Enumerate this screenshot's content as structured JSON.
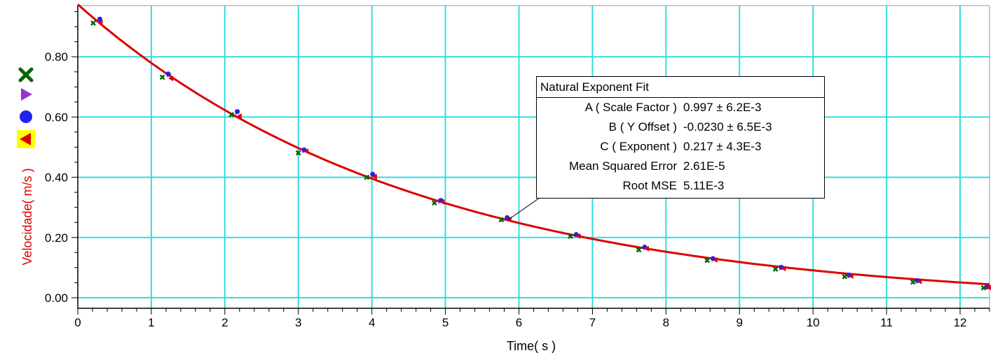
{
  "chart_data": {
    "type": "scatter",
    "xlabel": "Time( s )",
    "ylabel": "Velocidade( m/s )",
    "xlim": [
      0,
      12.4
    ],
    "ylim": [
      -0.035,
      0.97
    ],
    "x_ticks": [
      0,
      1,
      2,
      3,
      4,
      5,
      6,
      7,
      8,
      9,
      10,
      11,
      12
    ],
    "y_ticks": [
      0.0,
      0.2,
      0.4,
      0.6,
      0.8
    ],
    "y_tick_labels": [
      "0.00",
      "0.20",
      "0.40",
      "0.60",
      "0.80"
    ],
    "grid": true,
    "fit": {
      "model": "natural-exponent",
      "A": 0.997,
      "B": -0.023,
      "C": 0.217,
      "color": "#dd0000"
    },
    "series": [
      {
        "marker": "x",
        "color": "#006600",
        "x": [
          0.21,
          1.15,
          2.09,
          3.0,
          3.93,
          4.85,
          5.76,
          6.7,
          7.63,
          8.56,
          9.49,
          10.43,
          11.36,
          12.32
        ],
        "y": [
          0.912,
          0.732,
          0.608,
          0.481,
          0.4,
          0.315,
          0.259,
          0.204,
          0.159,
          0.124,
          0.095,
          0.07,
          0.052,
          0.033
        ]
      },
      {
        "marker": "triangle-right",
        "color": "#9933cc",
        "x": [
          0.3,
          1.24,
          2.17,
          3.08,
          4.02,
          4.93,
          5.85,
          6.79,
          7.72,
          8.65,
          9.57,
          10.5,
          11.43,
          12.37
        ],
        "y": [
          0.922,
          0.741,
          0.616,
          0.489,
          0.409,
          0.321,
          0.265,
          0.209,
          0.167,
          0.129,
          0.1,
          0.074,
          0.056,
          0.035
        ]
      },
      {
        "marker": "circle",
        "color": "#2222ee",
        "x": [
          0.3,
          1.23,
          2.17,
          3.08,
          4.01,
          4.94,
          5.84,
          6.78,
          7.71,
          8.64,
          9.57,
          10.49,
          11.42,
          12.37
        ],
        "y": [
          0.925,
          0.743,
          0.618,
          0.491,
          0.41,
          0.323,
          0.266,
          0.21,
          0.168,
          0.13,
          0.101,
          0.075,
          0.057,
          0.036
        ]
      },
      {
        "marker": "triangle-left",
        "color": "#dd0000",
        "x": [
          0.31,
          1.27,
          2.2,
          3.11,
          4.04,
          4.96,
          5.87,
          6.81,
          7.74,
          8.67,
          9.6,
          10.52,
          11.45,
          12.39
        ],
        "y": [
          0.913,
          0.728,
          0.603,
          0.486,
          0.402,
          0.318,
          0.26,
          0.205,
          0.163,
          0.126,
          0.097,
          0.072,
          0.054,
          0.034
        ]
      }
    ]
  },
  "fit_box": {
    "title": "Natural Exponent Fit",
    "rows": [
      {
        "name": "A ( Scale Factor )",
        "value": "0.997 ± 6.2E-3"
      },
      {
        "name": "B ( Y Offset )",
        "value": "-0.0230 ± 6.5E-3"
      },
      {
        "name": "C ( Exponent )",
        "value": "0.217 ± 4.3E-3"
      },
      {
        "name": "Mean Squared Error",
        "value": "2.61E-5"
      },
      {
        "name": "Root MSE",
        "value": "5.11E-3"
      }
    ],
    "pointer_target": {
      "x": 5.85,
      "y": 0.258
    }
  },
  "colors": {
    "grid": "#33dddd",
    "axis": "#000000",
    "ylabel": "#dd0000",
    "highlight": "#ffff00"
  },
  "legend_icons": [
    {
      "icon": "x-icon",
      "color": "#006600"
    },
    {
      "icon": "triangle-right-icon",
      "color": "#9933cc"
    },
    {
      "icon": "circle-icon",
      "color": "#2222ee"
    },
    {
      "icon": "triangle-left-icon",
      "color": "#dd0000",
      "highlighted": true
    }
  ]
}
